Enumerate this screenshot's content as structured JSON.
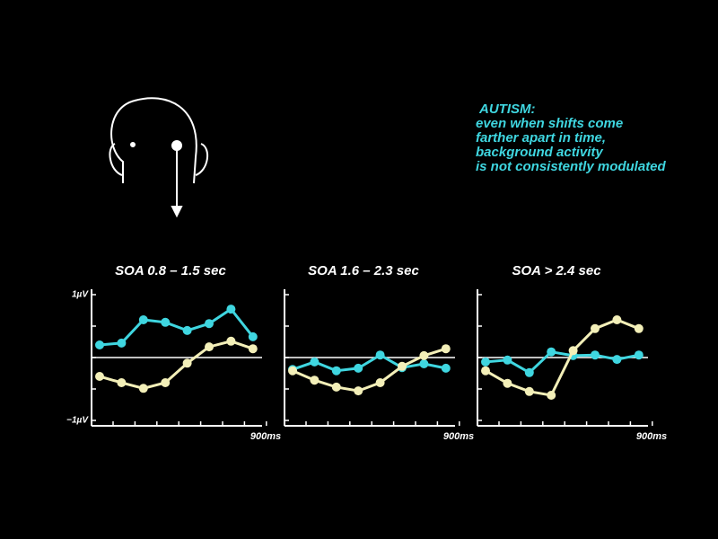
{
  "annotation": [
    "AUTISM:",
    "even when shifts come",
    "farther apart in time,",
    "background activity",
    "is not consistently modulated"
  ],
  "chart_data": [
    {
      "type": "line",
      "title": "SOA 0.8 – 1.5 sec",
      "x_label": "900ms",
      "categories": [
        null,
        null,
        null,
        null,
        null,
        null,
        null,
        null
      ],
      "ylim": [
        -1,
        1
      ],
      "yticks": [
        {
          "value": 1,
          "label": "1µV"
        },
        0.5,
        0,
        -0.5,
        {
          "value": -1,
          "label": "−1µV"
        }
      ],
      "series": [
        {
          "color": "#3fd6e0",
          "values": [
            0.2,
            0.23,
            0.6,
            0.56,
            0.43,
            0.54,
            0.77,
            0.33
          ]
        },
        {
          "color": "#f3efb8",
          "values": [
            -0.3,
            -0.4,
            -0.49,
            -0.4,
            -0.09,
            0.17,
            0.26,
            0.14
          ]
        }
      ]
    },
    {
      "type": "line",
      "title": "SOA 1.6 – 2.3 sec",
      "x_label": "900ms",
      "categories": [
        null,
        null,
        null,
        null,
        null,
        null,
        null,
        null
      ],
      "ylim": [
        -1,
        1
      ],
      "yticks": [
        1,
        0.5,
        0,
        -0.5,
        -1
      ],
      "series": [
        {
          "color": "#3fd6e0",
          "values": [
            -0.19,
            -0.07,
            -0.21,
            -0.17,
            0.04,
            -0.16,
            -0.1,
            -0.17
          ]
        },
        {
          "color": "#f3efb8",
          "values": [
            -0.21,
            -0.36,
            -0.47,
            -0.53,
            -0.4,
            -0.14,
            0.03,
            0.14
          ]
        }
      ]
    },
    {
      "type": "line",
      "title": "SOA > 2.4 sec",
      "x_label": "900ms",
      "categories": [
        null,
        null,
        null,
        null,
        null,
        null,
        null,
        null
      ],
      "ylim": [
        -1,
        1
      ],
      "yticks": [
        1,
        0.5,
        0,
        -0.5,
        -1
      ],
      "series": [
        {
          "color": "#3fd6e0",
          "values": [
            -0.07,
            -0.04,
            -0.24,
            0.09,
            0.03,
            0.04,
            -0.03,
            0.04
          ]
        },
        {
          "color": "#f3efb8",
          "values": [
            -0.21,
            -0.41,
            -0.54,
            -0.6,
            0.11,
            0.46,
            0.6,
            0.46
          ]
        }
      ]
    }
  ]
}
